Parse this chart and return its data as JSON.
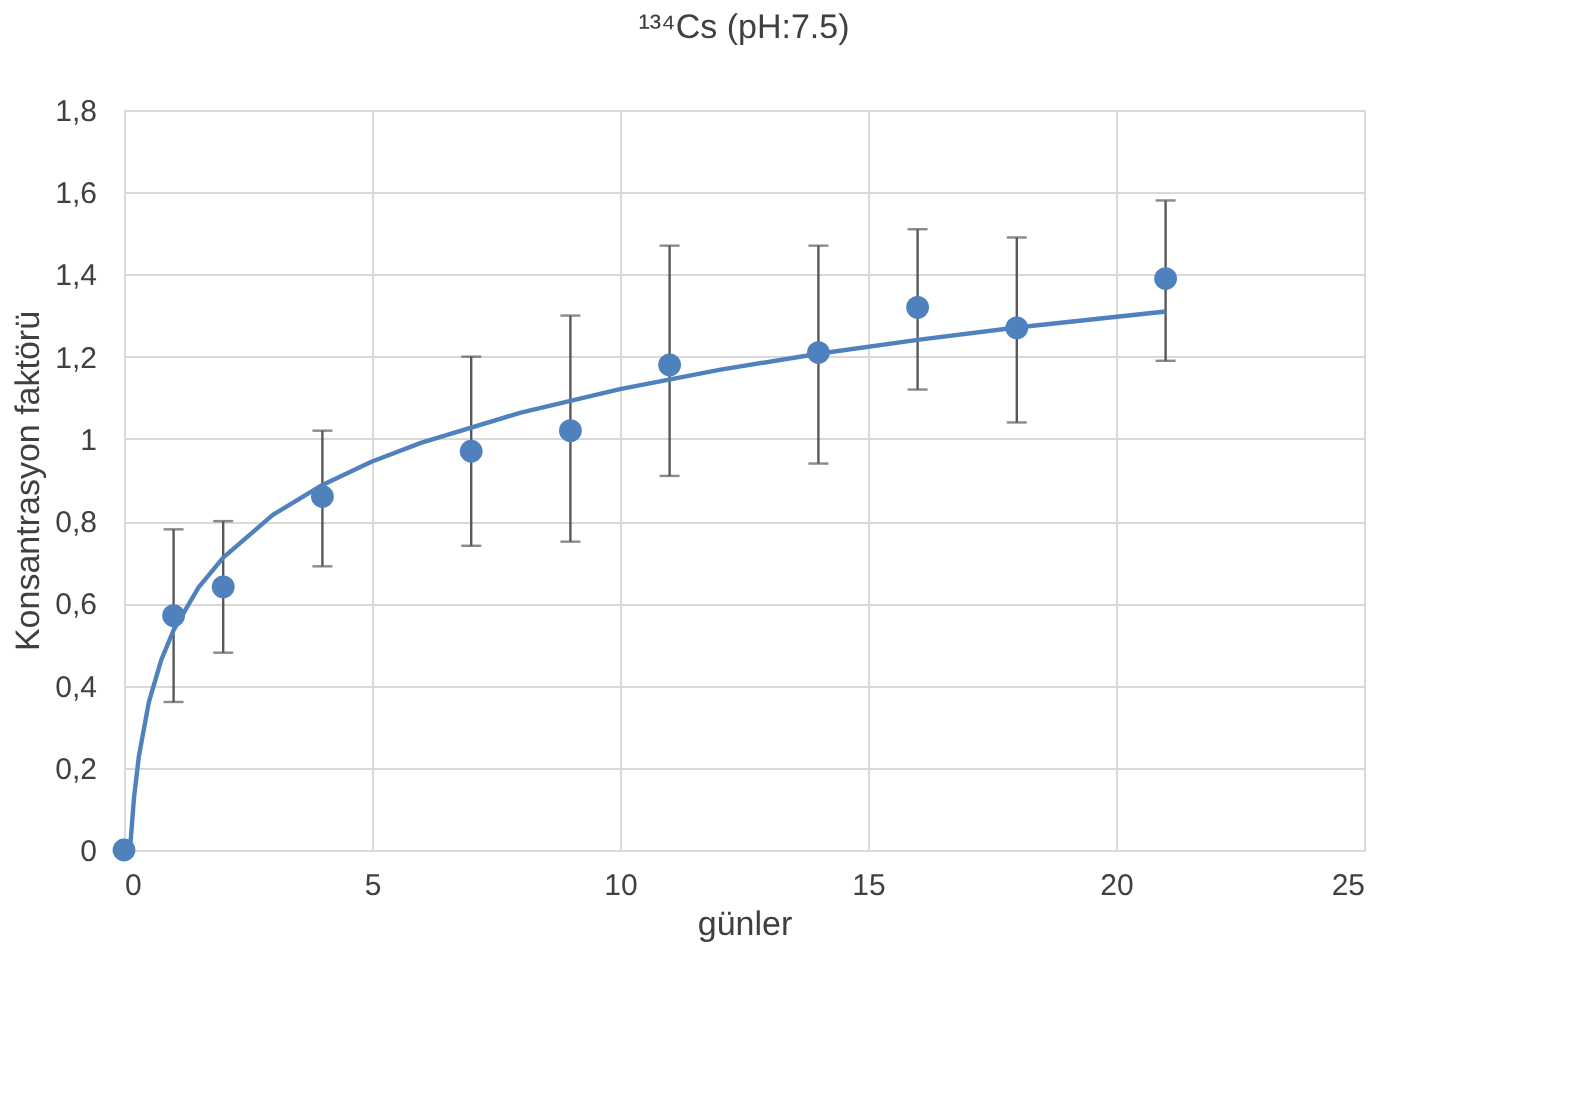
{
  "chart_data": {
    "type": "scatter",
    "title": "¹³⁴Cs (pH:7.5)",
    "xlabel": "günler",
    "ylabel": "Konsantrasyon faktörü",
    "xlim": [
      0,
      25
    ],
    "xticks": [
      0,
      5,
      10,
      15,
      20,
      25
    ],
    "ylim": [
      0,
      1.8
    ],
    "yticks": [
      0,
      {
        "value": 0.2,
        "label": "0,2"
      },
      {
        "value": 0.4,
        "label": "0,4"
      },
      {
        "value": 0.6,
        "label": "0,6"
      },
      {
        "value": 0.8,
        "label": "0,8"
      },
      1,
      {
        "value": 1.2,
        "label": "1,2"
      },
      {
        "value": 1.4,
        "label": "1,4"
      },
      {
        "value": 1.6,
        "label": "1,6"
      },
      {
        "value": 1.8,
        "label": "1,8"
      }
    ],
    "grid": true,
    "series": [
      {
        "marker": "circle",
        "color": "#4f81bd",
        "x": [
          0,
          1,
          2,
          4,
          7,
          9,
          11,
          14,
          16,
          18,
          21
        ],
        "values": [
          0,
          0.57,
          0.64,
          0.86,
          0.97,
          1.02,
          1.18,
          1.21,
          1.32,
          1.27,
          1.39
        ],
        "errors": [
          null,
          [
            0.36,
            0.78
          ],
          [
            0.48,
            0.8
          ],
          [
            0.69,
            1.02
          ],
          [
            0.74,
            1.2
          ],
          [
            0.75,
            1.3
          ],
          [
            0.91,
            1.47
          ],
          [
            0.94,
            1.47
          ],
          [
            1.12,
            1.51
          ],
          [
            1.04,
            1.49
          ],
          [
            1.19,
            1.58
          ]
        ]
      },
      {
        "type": "line",
        "marker": "none",
        "color": "#4f81bd",
        "x": [
          0.12,
          0.2,
          0.3,
          0.5,
          0.75,
          1,
          1.5,
          2,
          3,
          4,
          5,
          6,
          8,
          10,
          12,
          14,
          16,
          18,
          21
        ],
        "values": [
          0,
          0.125,
          0.228,
          0.359,
          0.462,
          0.535,
          0.638,
          0.711,
          0.815,
          0.888,
          0.945,
          0.991,
          1.064,
          1.121,
          1.168,
          1.207,
          1.241,
          1.271,
          1.31
        ]
      }
    ]
  }
}
